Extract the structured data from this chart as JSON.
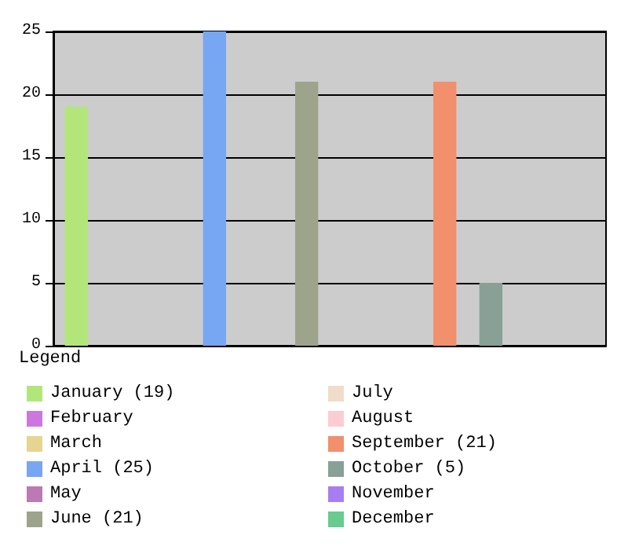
{
  "chart_data": {
    "type": "bar",
    "stacked": true,
    "legend_title": "Legend",
    "legend": "bottom",
    "grid": "y",
    "tick_labels": "y",
    "categories": [
      null,
      null,
      null,
      null,
      null,
      null,
      null,
      null,
      null,
      null,
      null,
      null
    ],
    "ylim": [
      0,
      25
    ],
    "yticks": [
      0,
      5,
      10,
      15,
      20,
      25
    ],
    "series": [
      {
        "name": "January (19)",
        "color": "#b3e67a",
        "values": [
          19,
          null,
          null,
          null,
          null,
          null,
          null,
          null,
          null,
          null,
          null,
          null
        ]
      },
      {
        "name": "February",
        "color": "#cc77dd",
        "values": [
          null,
          0,
          null,
          null,
          null,
          null,
          null,
          null,
          null,
          null,
          null,
          null
        ]
      },
      {
        "name": "March",
        "color": "#e6d491",
        "values": [
          null,
          null,
          0,
          null,
          null,
          null,
          null,
          null,
          null,
          null,
          null,
          null
        ]
      },
      {
        "name": "April (25)",
        "color": "#77a6f2",
        "values": [
          null,
          null,
          null,
          25,
          null,
          null,
          null,
          null,
          null,
          null,
          null,
          null
        ]
      },
      {
        "name": "May",
        "color": "#bb7ab3",
        "values": [
          null,
          null,
          null,
          null,
          0,
          null,
          null,
          null,
          null,
          null,
          null,
          null
        ]
      },
      {
        "name": "June (21)",
        "color": "#9ea38b",
        "values": [
          null,
          null,
          null,
          null,
          null,
          21,
          null,
          null,
          null,
          null,
          null,
          null
        ]
      },
      {
        "name": "July",
        "color": "#f0dcc8",
        "values": [
          null,
          null,
          null,
          null,
          null,
          null,
          0,
          null,
          null,
          null,
          null,
          null
        ]
      },
      {
        "name": "August",
        "color": "#fcccd2",
        "values": [
          null,
          null,
          null,
          null,
          null,
          null,
          null,
          0,
          null,
          null,
          null,
          null
        ]
      },
      {
        "name": "September (21)",
        "color": "#f28f6c",
        "values": [
          null,
          null,
          null,
          null,
          null,
          null,
          null,
          null,
          21,
          null,
          null,
          null
        ]
      },
      {
        "name": "October (5)",
        "color": "#88a095",
        "values": [
          null,
          null,
          null,
          null,
          null,
          null,
          null,
          null,
          null,
          5,
          null,
          null
        ]
      },
      {
        "name": "November",
        "color": "#a77ef2",
        "values": [
          null,
          null,
          null,
          null,
          null,
          null,
          null,
          null,
          null,
          null,
          0,
          null
        ]
      },
      {
        "name": "December",
        "color": "#66cc90",
        "values": [
          null,
          null,
          null,
          null,
          null,
          null,
          null,
          null,
          null,
          null,
          null,
          0
        ]
      }
    ]
  }
}
